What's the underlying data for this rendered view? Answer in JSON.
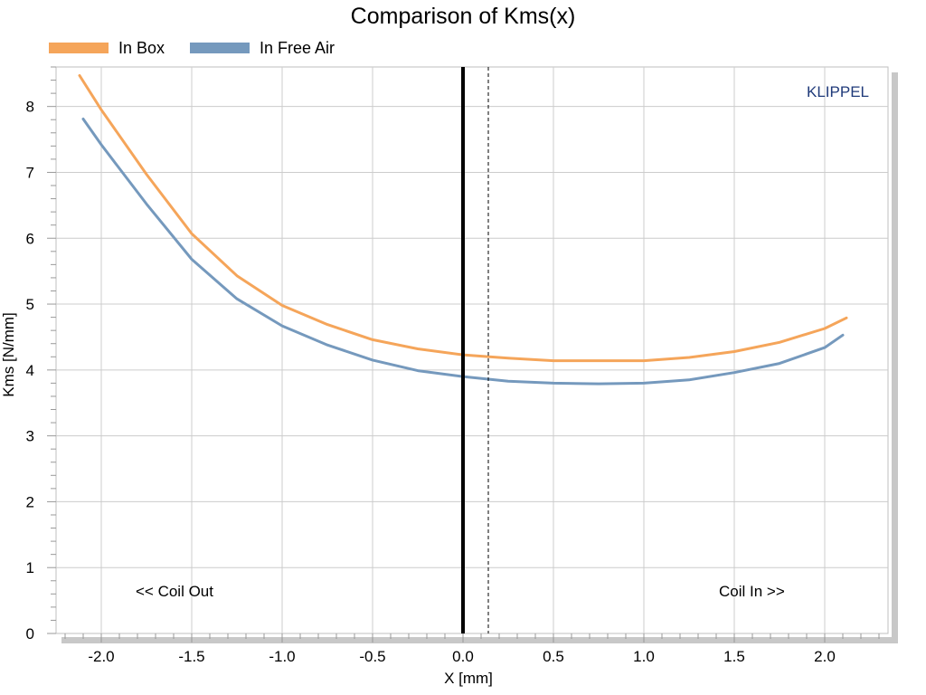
{
  "chart_data": {
    "type": "line",
    "title": "Comparison of Kms(x)",
    "xlabel": "X [mm]",
    "ylabel": "Kms [N/mm]",
    "xlim": [
      -2.25,
      2.35
    ],
    "ylim": [
      0,
      8.6
    ],
    "xticks": [
      -2.0,
      -1.5,
      -1.0,
      -0.5,
      0.0,
      0.5,
      1.0,
      1.5,
      2.0
    ],
    "xtick_labels": [
      "-2.0",
      "-1.5",
      "-1.0",
      "-0.5",
      "0.0",
      "0.5",
      "1.0",
      "1.5",
      "2.0"
    ],
    "yticks": [
      0,
      1,
      2,
      3,
      4,
      5,
      6,
      7,
      8
    ],
    "ytick_labels": [
      "0",
      "1",
      "2",
      "3",
      "4",
      "5",
      "6",
      "7",
      "8"
    ],
    "grid": true,
    "legend_position": "top-left",
    "series": [
      {
        "name": "In Box",
        "color": "#f5a55a",
        "x": [
          -2.12,
          -2.0,
          -1.75,
          -1.5,
          -1.25,
          -1.0,
          -0.75,
          -0.5,
          -0.25,
          0.0,
          0.25,
          0.5,
          0.75,
          1.0,
          1.25,
          1.5,
          1.75,
          2.0,
          2.12
        ],
        "y": [
          8.47,
          7.95,
          6.97,
          6.07,
          5.43,
          4.98,
          4.69,
          4.46,
          4.32,
          4.23,
          4.18,
          4.14,
          4.14,
          4.14,
          4.19,
          4.28,
          4.42,
          4.63,
          4.79
        ]
      },
      {
        "name": "In Free Air",
        "color": "#7599bd",
        "x": [
          -2.1,
          -2.0,
          -1.75,
          -1.5,
          -1.25,
          -1.0,
          -0.75,
          -0.5,
          -0.25,
          0.0,
          0.25,
          0.5,
          0.75,
          1.0,
          1.25,
          1.5,
          1.75,
          2.0,
          2.1
        ],
        "y": [
          7.81,
          7.42,
          6.52,
          5.68,
          5.08,
          4.67,
          4.38,
          4.15,
          3.99,
          3.9,
          3.83,
          3.8,
          3.79,
          3.8,
          3.85,
          3.96,
          4.1,
          4.34,
          4.53
        ]
      }
    ],
    "reference_lines": [
      {
        "x": 0.0,
        "style": "solid",
        "color": "#000000"
      },
      {
        "x": 0.14,
        "style": "dashed",
        "color": "#000000"
      }
    ],
    "annotations": {
      "coil_out": "<< Coil Out",
      "coil_in": "Coil In >>",
      "brand": "KLIPPEL"
    },
    "colors": {
      "brand": "#1f3a7a",
      "grid": "#cccccc",
      "frame_shadow": "#c8c8c8"
    }
  }
}
